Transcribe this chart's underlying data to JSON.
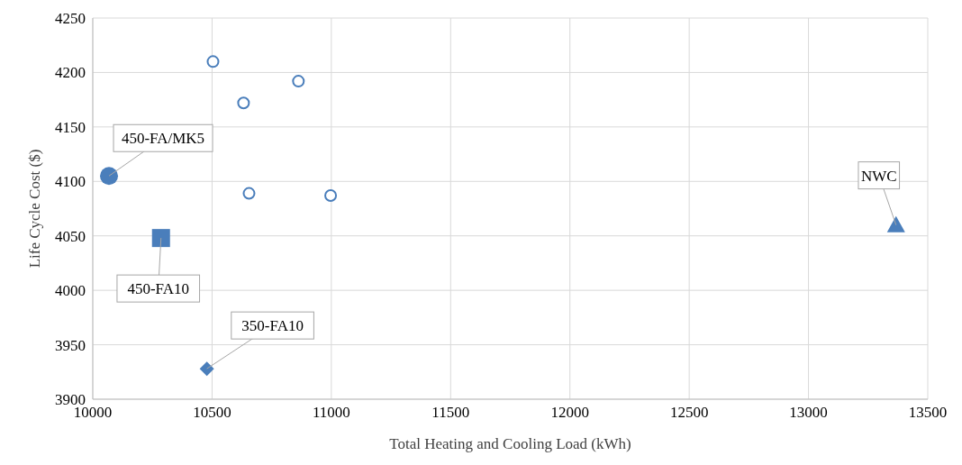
{
  "chart_data": {
    "type": "scatter",
    "xlabel": "Total Heating and Cooling Load (kWh)",
    "ylabel": "Life Cycle Cost ($)",
    "xlim": [
      10000,
      13500
    ],
    "xticks": [
      10000,
      10500,
      11000,
      11500,
      12000,
      12500,
      13000,
      13500
    ],
    "ylim": [
      3900,
      4250
    ],
    "yticks": [
      3900,
      3950,
      4000,
      4050,
      4100,
      4150,
      4200,
      4250
    ],
    "grid": true,
    "legend": false,
    "series": [
      {
        "color": "#4a7ebb",
        "marker": "circle",
        "x": [
          10504,
          10632,
          10862,
          10655,
          10997
        ],
        "values": [
          4210,
          4172,
          4192,
          4089,
          4087
        ]
      },
      {
        "color": "#4a7ebb",
        "marker": "circle",
        "x": [
          10068
        ],
        "values": [
          4105
        ]
      },
      {
        "color": "#4a7ebb",
        "marker": "square",
        "x": [
          10286
        ],
        "values": [
          4048
        ]
      },
      {
        "color": "#4a7ebb",
        "marker": "diamond",
        "x": [
          10478
        ],
        "values": [
          3928
        ]
      },
      {
        "color": "#4a7ebb",
        "marker": "triangle",
        "x": [
          13367
        ],
        "values": [
          4060
        ]
      }
    ],
    "annotations": [
      {
        "text": "450-FA/MK5",
        "x": 10068,
        "y": 4105
      },
      {
        "text": "450-FA10",
        "x": 10286,
        "y": 4048
      },
      {
        "text": "350-FA10",
        "x": 10478,
        "y": 3928
      },
      {
        "text": "NWC",
        "x": 13367,
        "y": 4060
      }
    ]
  }
}
